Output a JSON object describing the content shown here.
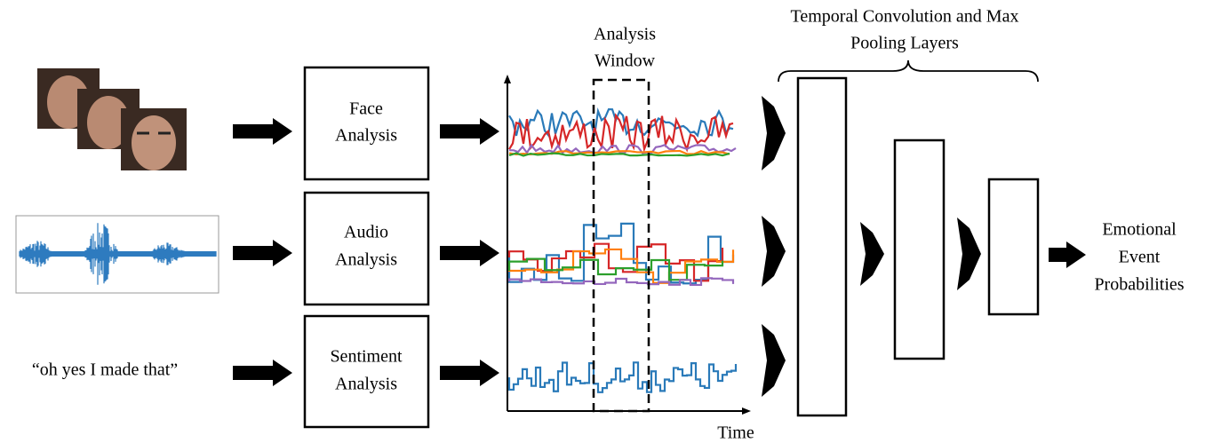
{
  "inputs": {
    "quote": "“oh yes I made that”"
  },
  "modules": [
    {
      "lines": [
        "Face",
        "Analysis"
      ]
    },
    {
      "lines": [
        "Audio",
        "Analysis"
      ]
    },
    {
      "lines": [
        "Sentiment",
        "Analysis"
      ]
    }
  ],
  "plot": {
    "window_label": [
      "Analysis",
      "Window"
    ],
    "x_label": "Time"
  },
  "layers": {
    "title": [
      "Temporal Convolution and Max",
      "Pooling Layers"
    ]
  },
  "output": {
    "lines": [
      "Emotional",
      "Event",
      "Probabilities"
    ]
  }
}
